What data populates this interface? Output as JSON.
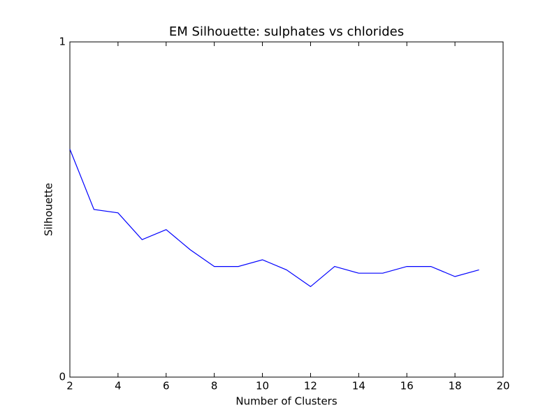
{
  "chart_data": {
    "type": "line",
    "title": "EM Silhouette: sulphates vs chlorides",
    "x_label": "Number of Clusters",
    "y_label": "Silhouette",
    "x": [
      2,
      3,
      4,
      5,
      6,
      7,
      8,
      9,
      10,
      11,
      12,
      13,
      14,
      15,
      16,
      17,
      18,
      19
    ],
    "series": [
      {
        "name": "Silhouette",
        "color": "#0000ff",
        "values": [
          0.68,
          0.5,
          0.49,
          0.41,
          0.44,
          0.38,
          0.33,
          0.33,
          0.35,
          0.32,
          0.27,
          0.33,
          0.31,
          0.31,
          0.33,
          0.33,
          0.3,
          0.32
        ]
      }
    ],
    "xlim": [
      2,
      20
    ],
    "xticks": [
      2,
      4,
      6,
      8,
      10,
      12,
      14,
      16,
      18,
      20
    ],
    "ylim": [
      0,
      1
    ],
    "yticks": [
      0,
      1
    ],
    "grid": false
  }
}
